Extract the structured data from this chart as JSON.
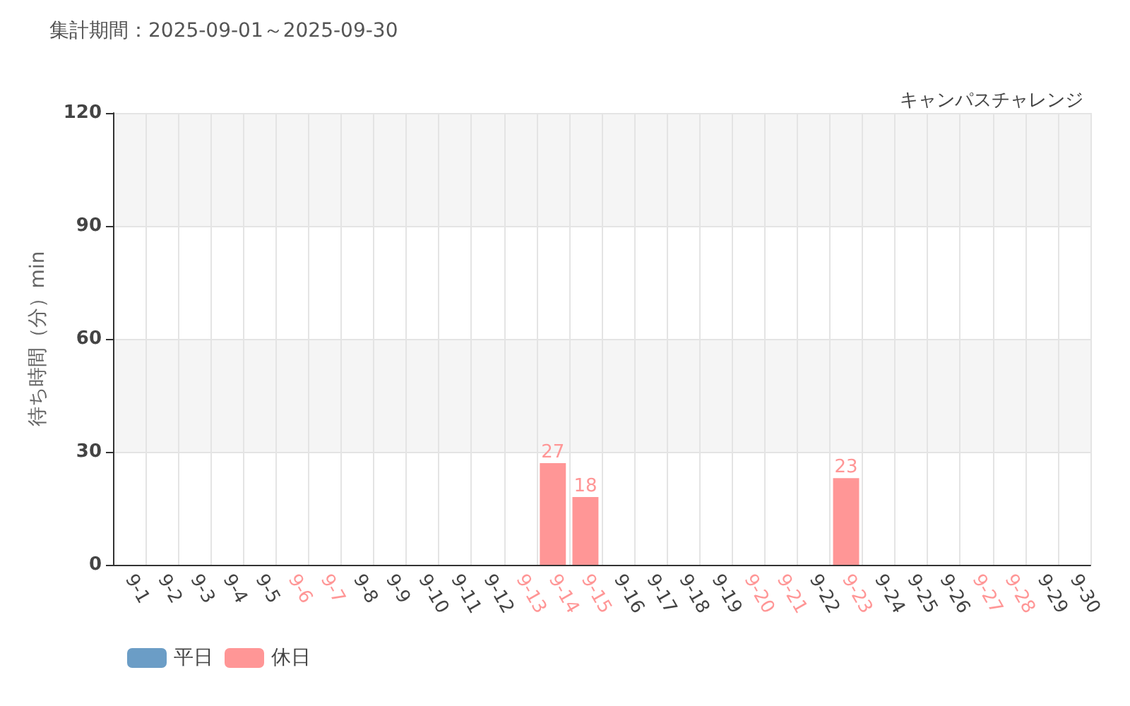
{
  "chart_data": {
    "type": "bar",
    "title": "集計期間：2025-09-01～2025-09-30",
    "subtitle": "キャンパスチャレンジ",
    "ylabel": "待ち時間（分）min",
    "categories": [
      "9-1",
      "9-2",
      "9-3",
      "9-4",
      "9-5",
      "9-6",
      "9-7",
      "9-8",
      "9-9",
      "9-10",
      "9-11",
      "9-12",
      "9-13",
      "9-14",
      "9-15",
      "9-16",
      "9-17",
      "9-18",
      "9-19",
      "9-20",
      "9-21",
      "9-22",
      "9-23",
      "9-24",
      "9-25",
      "9-26",
      "9-27",
      "9-28",
      "9-29",
      "9-30"
    ],
    "series": [
      {
        "name": "平日",
        "color": "#6b9dc6",
        "values": [
          0,
          0,
          0,
          0,
          0,
          null,
          null,
          0,
          0,
          0,
          0,
          0,
          null,
          null,
          null,
          0,
          0,
          0,
          0,
          null,
          null,
          0,
          null,
          0,
          0,
          0,
          null,
          null,
          0,
          0
        ]
      },
      {
        "name": "休日",
        "color": "#ff9696",
        "values": [
          null,
          null,
          null,
          null,
          null,
          0,
          0,
          null,
          null,
          null,
          null,
          null,
          0,
          27,
          18,
          null,
          null,
          null,
          null,
          0,
          0,
          null,
          23,
          null,
          null,
          null,
          0,
          0,
          null,
          null
        ],
        "value_labels": [
          null,
          null,
          null,
          null,
          null,
          null,
          null,
          null,
          null,
          null,
          null,
          null,
          null,
          "27",
          "18",
          null,
          null,
          null,
          null,
          null,
          null,
          null,
          "23",
          null,
          null,
          null,
          null,
          null,
          null,
          null
        ]
      }
    ],
    "ylim": [
      0,
      120
    ],
    "yticks": [
      0,
      30,
      60,
      90,
      120
    ],
    "grid": true,
    "legend": "bottom left"
  }
}
